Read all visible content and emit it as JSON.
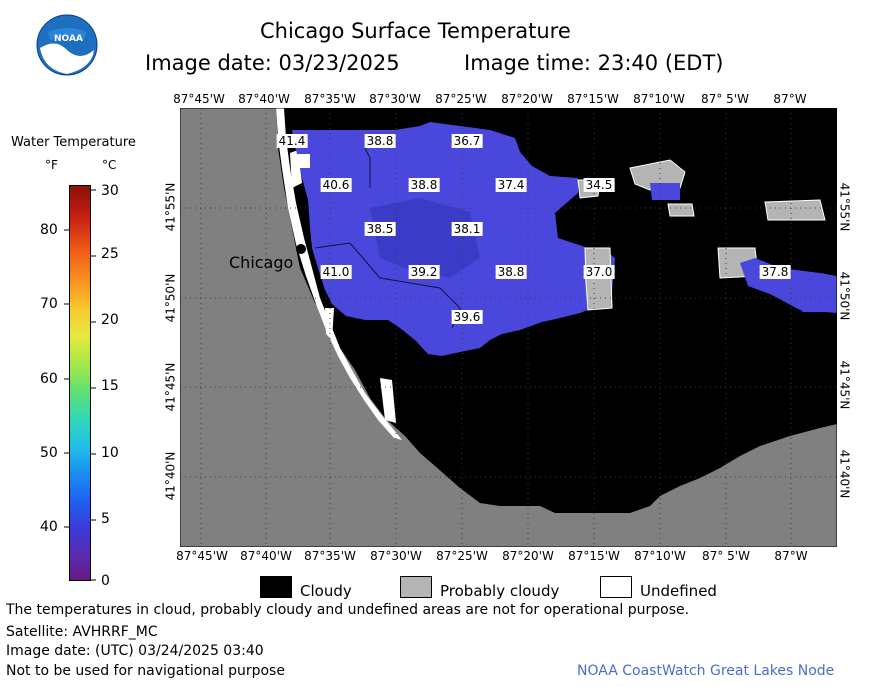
{
  "header": {
    "title": "Chicago Surface Temperature",
    "image_date": "Image date: 03/23/2025",
    "image_time": "Image time: 23:40 (EDT)"
  },
  "logo": {
    "text": "NOAA",
    "icon": "noaa-logo-icon"
  },
  "scale": {
    "title": "Water Temperature",
    "unit_f": "°F",
    "unit_c": "°C",
    "f_ticks": [
      "80",
      "70",
      "60",
      "50",
      "40"
    ],
    "c_ticks": [
      "30",
      "25",
      "20",
      "15",
      "10",
      "5",
      "0"
    ]
  },
  "map": {
    "lon_labels": [
      "87°45'W",
      "87°40'W",
      "87°35'W",
      "87°30'W",
      "87°25'W",
      "87°20'W",
      "87°15'W",
      "87°10'W",
      "87° 5'W",
      "87°W"
    ],
    "lat_labels": [
      "41°55'N",
      "41°50'N",
      "41°45'N",
      "41°40'N"
    ],
    "city_label": "Chicago",
    "temperature_labels": [
      "41.4",
      "38.8",
      "36.7",
      "40.6",
      "38.8",
      "37.4",
      "34.5",
      "38.5",
      "38.1",
      "41.0",
      "39.2",
      "38.8",
      "37.0",
      "37.8",
      "39.6"
    ],
    "colors": {
      "land": "#808080",
      "cloud": "#000000",
      "water_cold": "#5050e0",
      "water_deep": "#3838c8",
      "undefined": "#ffffff",
      "probably_cloudy": "#b4b4b4"
    }
  },
  "legend": {
    "cloudy": "Cloudy",
    "probably_cloudy": "Probably cloudy",
    "undefined": "Undefined"
  },
  "footer": {
    "disclaimer": "The temperatures in cloud, probably cloudy and undefined areas are not for operational purpose.",
    "satellite": "Satellite: AVHRRF_MC",
    "utc_date": "Image date: (UTC) 03/24/2025  03:40",
    "nav_warning": "Not to be used for navigational purpose",
    "credit": "NOAA CoastWatch Great Lakes Node"
  }
}
